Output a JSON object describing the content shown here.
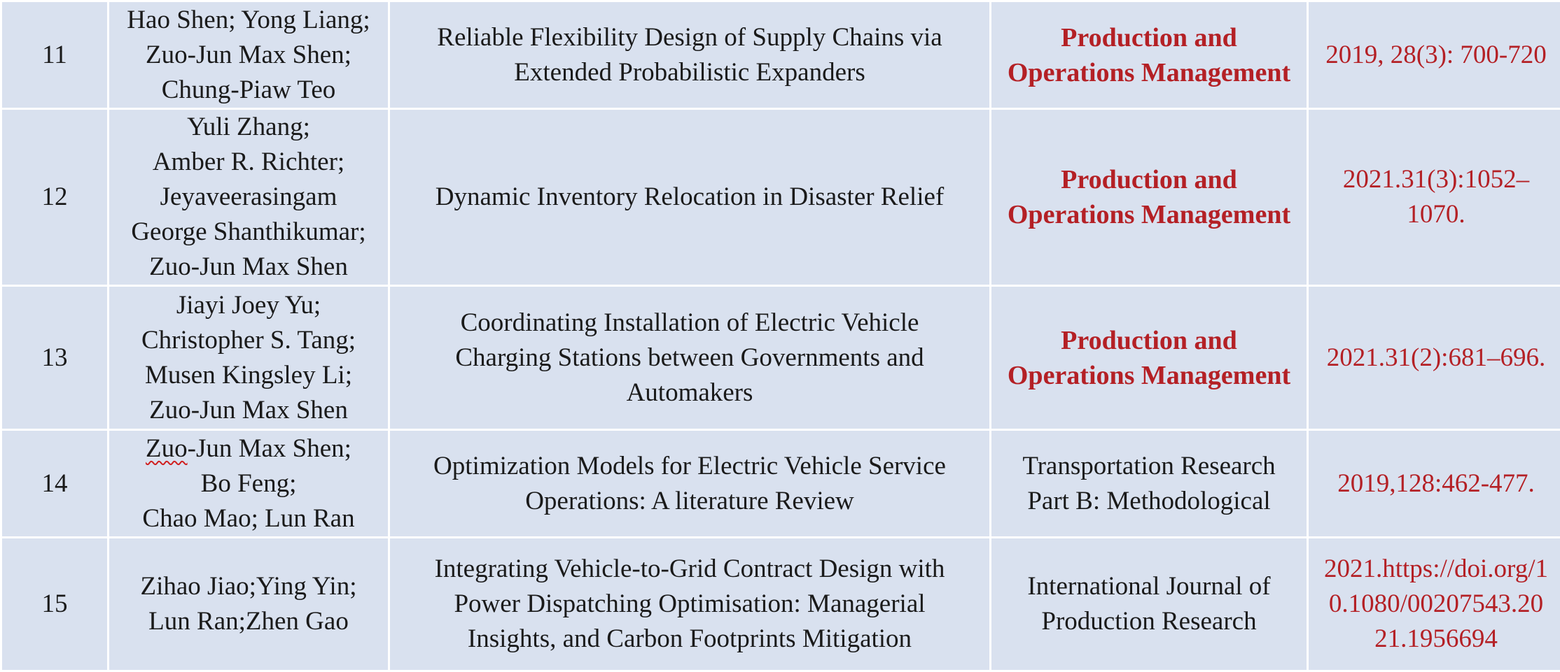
{
  "colors": {
    "cell_background": "#d9e1ef",
    "grid_lines": "#ffffff",
    "text": "#1a1a1a",
    "highlight_red": "#b42025"
  },
  "rows": [
    {
      "index": "11",
      "authors": [
        "Hao Shen; Yong Liang;",
        "Zuo-Jun Max Shen;",
        "Chung-Piaw Teo"
      ],
      "title": [
        "Reliable Flexibility Design of Supply Chains via",
        "Extended Probabilistic Expanders"
      ],
      "journal": [
        "Production and",
        "Operations Management"
      ],
      "volume": [
        "2019, 28(3): 700-720"
      ]
    },
    {
      "index": "12",
      "authors": [
        "Yuli Zhang;",
        "Amber R. Richter;",
        "Jeyaveerasingam",
        "George Shanthikumar;",
        "Zuo-Jun Max Shen"
      ],
      "title": [
        "Dynamic Inventory Relocation in Disaster Relief"
      ],
      "journal": [
        "Production and",
        "Operations Management"
      ],
      "volume": [
        "2021.31(3):1052–",
        "1070."
      ]
    },
    {
      "index": "13",
      "authors": [
        "Jiayi Joey Yu;",
        "Christopher S. Tang;",
        "Musen Kingsley Li;",
        "Zuo-Jun Max Shen"
      ],
      "title": [
        "Coordinating Installation of Electric Vehicle",
        "Charging Stations between Governments and",
        "Automakers"
      ],
      "journal": [
        "Production and",
        "Operations Management"
      ],
      "volume": [
        "2021.31(2):681–696."
      ]
    },
    {
      "index": "14",
      "authors_first_prefix": "Zuo",
      "authors_first_rest": "-Jun Max Shen;",
      "authors": [
        "Bo Feng;",
        "Chao Mao; Lun Ran"
      ],
      "title": [
        "Optimization Models for Electric Vehicle Service",
        "Operations: A literature Review"
      ],
      "journal": [
        "Transportation Research",
        "Part B: Methodological"
      ],
      "volume": [
        "2019,128:462-477."
      ]
    },
    {
      "index": "15",
      "authors": [
        "Zihao Jiao;Ying Yin;",
        "Lun Ran;Zhen Gao"
      ],
      "title": [
        "Integrating Vehicle-to-Grid Contract Design with",
        "Power Dispatching Optimisation: Managerial",
        "Insights, and Carbon Footprints Mitigation"
      ],
      "journal": [
        "International Journal of",
        "Production Research"
      ],
      "volume": [
        "2021.https://doi.org/1",
        "0.1080/00207543.20",
        "21.1956694"
      ]
    }
  ]
}
